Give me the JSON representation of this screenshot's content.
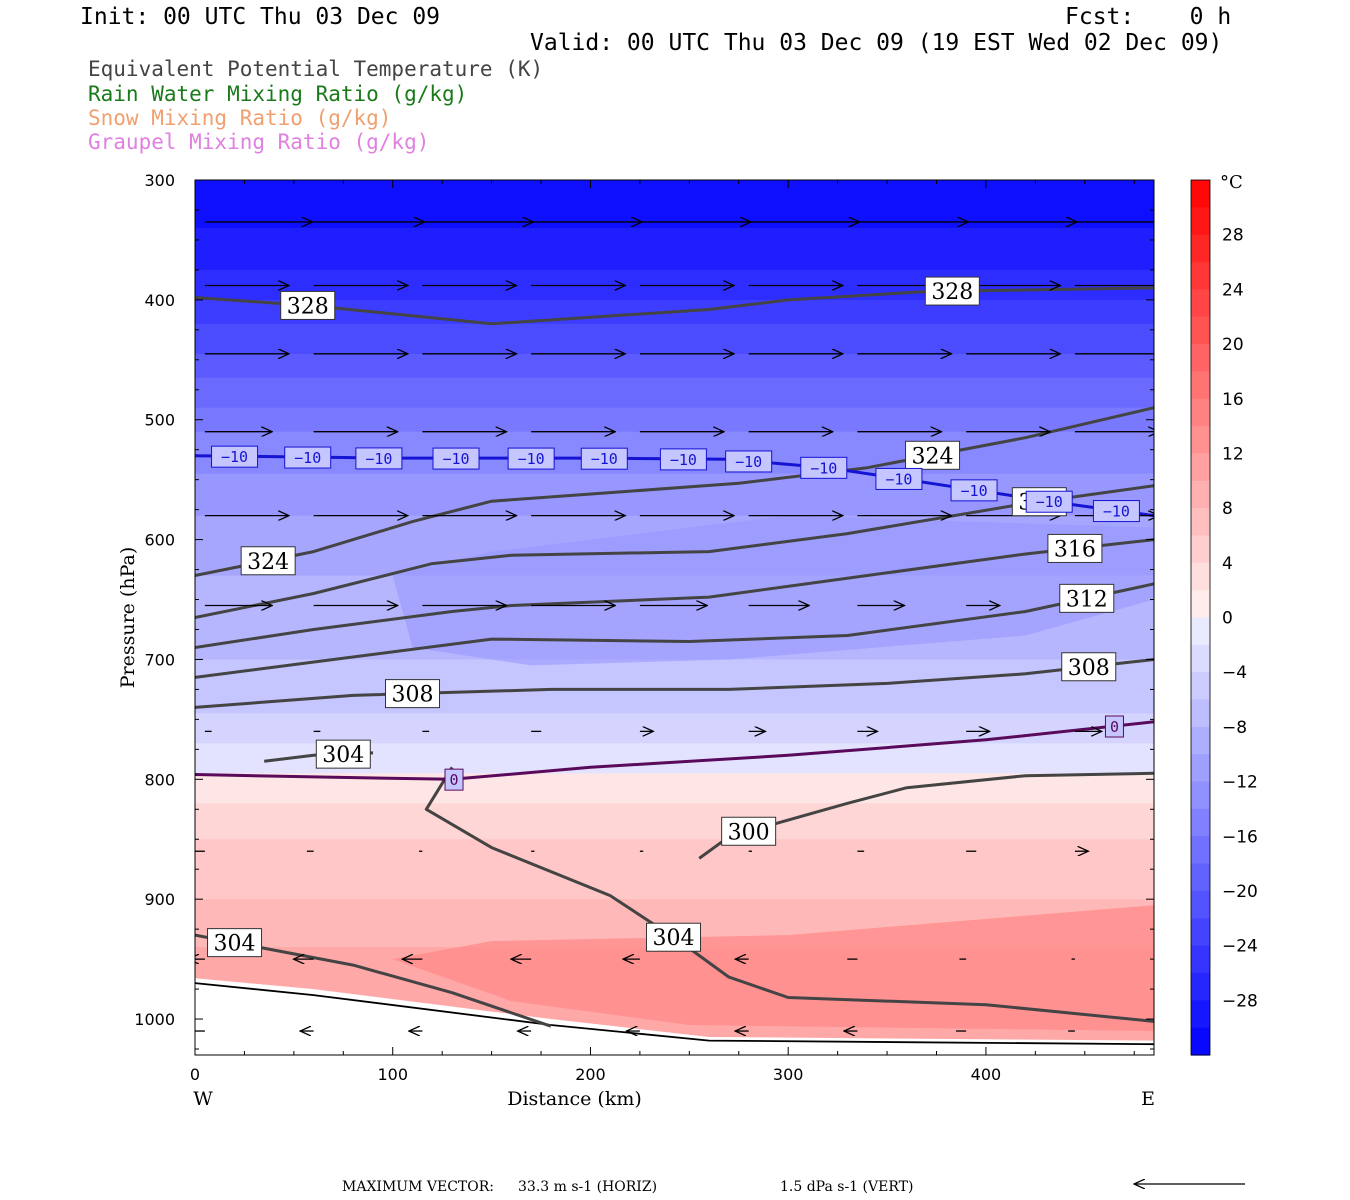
{
  "header": {
    "init": "Init: 00 UTC Thu 03 Dec 09",
    "fcst": "Fcst:    0 h",
    "valid": "Valid: 00 UTC Thu 03 Dec 09 (19 EST Wed 02 Dec 09)"
  },
  "fields": [
    {
      "label": "Equivalent Potential Temperature (K)",
      "color": "#444444"
    },
    {
      "label": "Rain Water Mixing Ratio (g/kg)",
      "color": "#1a7a1a"
    },
    {
      "label": "Snow Mixing Ratio (g/kg)",
      "color": "#f0a070"
    },
    {
      "label": "Graupel Mixing Ratio (g/kg)",
      "color": "#e080e0"
    }
  ],
  "footer": {
    "max_vector_label": "MAXIMUM VECTOR:",
    "horiz": "33.3 m s-1 (HORIZ)",
    "vert": "1.5 dPa s-1 (VERT)"
  },
  "chart_data": {
    "type": "cross-section",
    "xlabel": "Distance (km)",
    "ylabel": "Pressure (hPa)",
    "x_ticks": [
      0,
      100,
      200,
      300,
      400
    ],
    "x_left_label": "W",
    "x_right_label": "E",
    "xlim": [
      0,
      485
    ],
    "y_ticks": [
      300,
      400,
      500,
      600,
      700,
      800,
      900,
      1000
    ],
    "ylim": [
      300,
      1030
    ],
    "colorbar": {
      "unit": "°C",
      "ticks": [
        28,
        24,
        20,
        16,
        12,
        8,
        4,
        0,
        -4,
        -8,
        -12,
        -16,
        -20,
        -24,
        -28
      ],
      "range": [
        -32,
        32
      ]
    },
    "temperature_isotherms": [
      {
        "value": -10,
        "label": "−10",
        "color": "#1414d2",
        "points": [
          [
            0,
            530
          ],
          [
            100,
            532
          ],
          [
            200,
            532
          ],
          [
            270,
            533
          ],
          [
            320,
            540
          ],
          [
            380,
            555
          ],
          [
            440,
            570
          ],
          [
            485,
            580
          ]
        ],
        "label_x": [
          20,
          57,
          93,
          132,
          170,
          207,
          247,
          280,
          318,
          356,
          394,
          432,
          466
        ]
      },
      {
        "value": 0,
        "label": "0",
        "color": "#5a0a5a",
        "points": [
          [
            0,
            796
          ],
          [
            60,
            798
          ],
          [
            130,
            800
          ],
          [
            200,
            790
          ],
          [
            300,
            780
          ],
          [
            400,
            767
          ],
          [
            485,
            752
          ]
        ],
        "label_x": [
          131,
          465
        ]
      }
    ],
    "theta_e_contours": [
      {
        "value": 328,
        "points": [
          [
            0,
            398
          ],
          [
            60,
            405
          ],
          [
            150,
            420
          ],
          [
            260,
            408
          ],
          [
            300,
            400
          ],
          [
            370,
            393
          ],
          [
            485,
            390
          ]
        ],
        "labels_at": [
          57,
          383
        ]
      },
      {
        "value": 324,
        "points": [
          [
            0,
            630
          ],
          [
            60,
            610
          ],
          [
            110,
            585
          ],
          [
            150,
            568
          ],
          [
            275,
            553
          ],
          [
            340,
            540
          ],
          [
            420,
            515
          ],
          [
            485,
            490
          ]
        ],
        "labels_at": [
          37,
          373
        ]
      },
      {
        "value": 320,
        "points": [
          [
            0,
            665
          ],
          [
            60,
            645
          ],
          [
            120,
            620
          ],
          [
            160,
            613
          ],
          [
            260,
            610
          ],
          [
            330,
            595
          ],
          [
            420,
            570
          ],
          [
            485,
            555
          ]
        ],
        "labels_at": [
          427
        ]
      },
      {
        "value": 316,
        "points": [
          [
            0,
            690
          ],
          [
            60,
            675
          ],
          [
            130,
            660
          ],
          [
            160,
            655
          ],
          [
            260,
            648
          ],
          [
            340,
            630
          ],
          [
            420,
            612
          ],
          [
            485,
            600
          ]
        ],
        "labels_at": [
          445
        ]
      },
      {
        "value": 312,
        "points": [
          [
            0,
            715
          ],
          [
            70,
            700
          ],
          [
            150,
            683
          ],
          [
            250,
            685
          ],
          [
            330,
            680
          ],
          [
            420,
            660
          ],
          [
            485,
            637
          ]
        ],
        "labels_at": [
          451
        ]
      },
      {
        "value": 308,
        "points": [
          [
            0,
            740
          ],
          [
            80,
            730
          ],
          [
            180,
            725
          ],
          [
            270,
            725
          ],
          [
            350,
            720
          ],
          [
            420,
            712
          ],
          [
            485,
            700
          ]
        ],
        "labels_at": [
          110,
          452
        ]
      },
      {
        "value": 304,
        "points": [
          [
            0,
            930
          ],
          [
            80,
            955
          ],
          [
            130,
            978
          ],
          [
            180,
            1006
          ]
        ],
        "labels_at": [
          20
        ]
      },
      {
        "value": 304,
        "points": [
          [
            35,
            785
          ],
          [
            60,
            780
          ],
          [
            90,
            778
          ]
        ],
        "labels_at": [
          75
        ]
      },
      {
        "value": 304,
        "points": [
          [
            130,
            790
          ],
          [
            117,
            825
          ],
          [
            150,
            857
          ],
          [
            210,
            897
          ],
          [
            245,
            935
          ],
          [
            270,
            965
          ],
          [
            300,
            982
          ],
          [
            400,
            988
          ],
          [
            485,
            1002
          ]
        ],
        "labels_at": [
          242
        ]
      },
      {
        "value": 300,
        "points": [
          [
            255,
            866
          ],
          [
            270,
            848
          ],
          [
            330,
            820
          ],
          [
            360,
            807
          ],
          [
            420,
            797
          ],
          [
            485,
            795
          ]
        ],
        "labels_at": [
          280
        ]
      }
    ],
    "wind_vectors": [
      {
        "p": 335,
        "x": [
          5,
          60,
          115,
          170,
          225,
          280,
          335,
          390,
          445
        ],
        "u": [
          32,
          33,
          33,
          33,
          33,
          33,
          33,
          33,
          33
        ]
      },
      {
        "p": 388,
        "x": [
          5,
          60,
          115,
          170,
          225,
          280,
          335,
          390,
          445
        ],
        "u": [
          25,
          28,
          28,
          28,
          28,
          28,
          28,
          28,
          28
        ]
      },
      {
        "p": 445,
        "x": [
          5,
          60,
          115,
          170,
          225,
          280,
          335,
          390,
          445
        ],
        "u": [
          25,
          28,
          28,
          28,
          28,
          28,
          28,
          28,
          28
        ]
      },
      {
        "p": 510,
        "x": [
          5,
          60,
          115,
          170,
          225,
          280,
          335,
          390,
          445
        ],
        "u": [
          20,
          25,
          25,
          25,
          25,
          25,
          25,
          25,
          25
        ]
      },
      {
        "p": 580,
        "x": [
          5,
          60,
          115,
          170,
          225,
          280,
          335,
          390,
          445
        ],
        "u": [
          25,
          28,
          28,
          28,
          28,
          28,
          28,
          28,
          25
        ]
      },
      {
        "p": 655,
        "x": [
          5,
          60,
          115,
          170,
          225,
          280,
          335,
          390,
          445
        ],
        "u": [
          20,
          25,
          25,
          25,
          20,
          18,
          14,
          10,
          8
        ]
      },
      {
        "p": 760,
        "x": [
          5,
          60,
          115,
          170,
          225,
          280,
          335,
          390,
          445
        ],
        "u": [
          2,
          2,
          2,
          3,
          4,
          5,
          6,
          7,
          8
        ]
      },
      {
        "p": 860,
        "x": [
          5,
          60,
          115,
          170,
          225,
          280,
          335,
          390,
          445
        ],
        "u": [
          -3,
          -2,
          -1,
          1,
          1,
          1,
          2,
          3,
          4
        ]
      },
      {
        "p": 950,
        "x": [
          5,
          60,
          115,
          170,
          225,
          280,
          335,
          390,
          445
        ],
        "u": [
          -5,
          -6,
          -6,
          -6,
          -5,
          -4,
          -3,
          -2,
          -1
        ]
      },
      {
        "p": 1010,
        "x": [
          5,
          60,
          115,
          170,
          225,
          280,
          335,
          390,
          445
        ],
        "u": [
          -3,
          -4,
          -4,
          -4,
          -4,
          -4,
          -4,
          -3,
          -2
        ]
      }
    ]
  }
}
